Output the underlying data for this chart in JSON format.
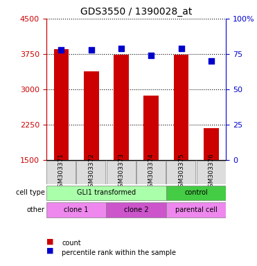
{
  "title": "GDS3550 / 1390028_at",
  "samples": [
    "GSM303371",
    "GSM303372",
    "GSM303373",
    "GSM303374",
    "GSM303375",
    "GSM303376"
  ],
  "counts": [
    3855,
    3380,
    3730,
    2870,
    3730,
    2180
  ],
  "percentiles": [
    78,
    78,
    79,
    74,
    79,
    70
  ],
  "ymin": 1500,
  "ymax": 4500,
  "yticks": [
    1500,
    2250,
    3000,
    3750,
    4500
  ],
  "ytick_labels": [
    "1500",
    "2250",
    "3000",
    "3750",
    "4500"
  ],
  "y2ticks": [
    0,
    25,
    50,
    75,
    100
  ],
  "y2tick_labels": [
    "0",
    "25",
    "50",
    "75",
    "100%"
  ],
  "bar_color": "#cc0000",
  "dot_color": "#0000cc",
  "cell_type_groups": [
    {
      "label": "GLI1 transformed",
      "start": 0,
      "end": 4,
      "color": "#aaffaa"
    },
    {
      "label": "control",
      "start": 4,
      "end": 6,
      "color": "#44cc44"
    }
  ],
  "other_groups": [
    {
      "label": "clone 1",
      "start": 0,
      "end": 2,
      "color": "#ee88ee"
    },
    {
      "label": "clone 2",
      "start": 2,
      "end": 4,
      "color": "#cc55cc"
    },
    {
      "label": "parental cell",
      "start": 4,
      "end": 6,
      "color": "#ee88ee"
    }
  ],
  "xlabel_cell_type": "cell type",
  "xlabel_other": "other",
  "legend_count": "count",
  "legend_percentile": "percentile rank within the sample",
  "tick_label_color_left": "#cc0000",
  "tick_label_color_right": "#0000cc"
}
